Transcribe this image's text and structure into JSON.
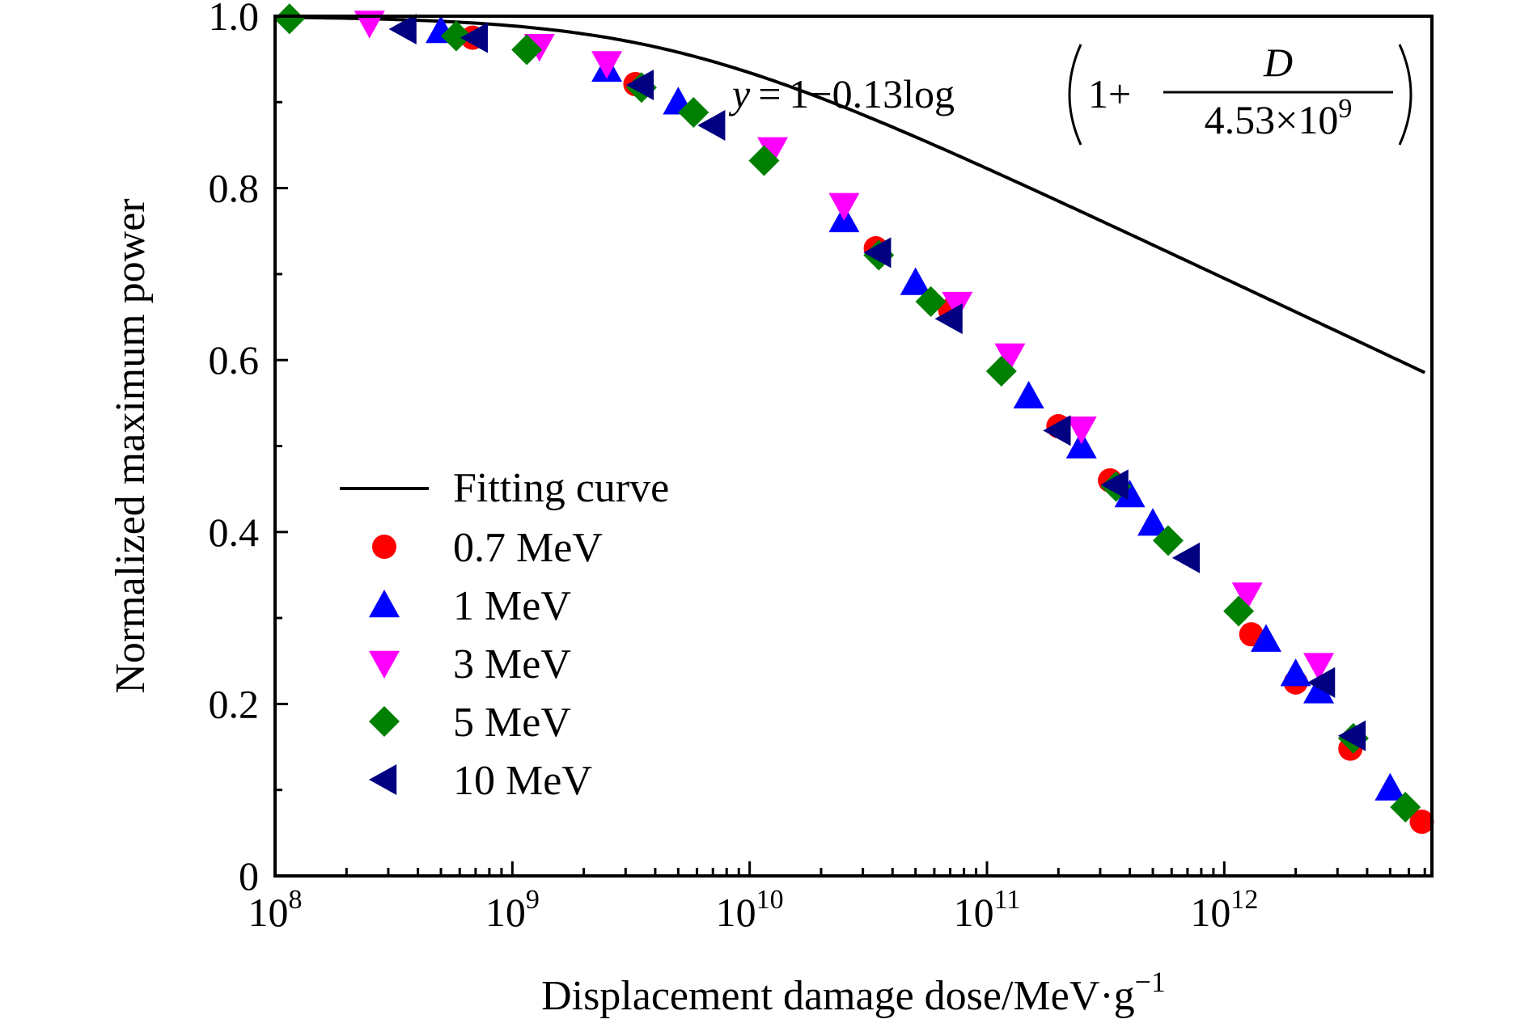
{
  "chart_data": {
    "type": "scatter",
    "xlabel": "Displacement damage dose/MeV·g",
    "xlabel_exponent": "−1",
    "ylabel": "Normalized maximum power",
    "x_scale": "log",
    "xlim": [
      100000000.0,
      7500000000000.0
    ],
    "ylim": [
      0,
      1.0
    ],
    "x_ticks": [
      {
        "base": "10",
        "exp": "8"
      },
      {
        "base": "10",
        "exp": "9"
      },
      {
        "base": "10",
        "exp": "10"
      },
      {
        "base": "10",
        "exp": "11"
      },
      {
        "base": "10",
        "exp": "12"
      }
    ],
    "y_ticks": [
      "0",
      "0.2",
      "0.4",
      "0.6",
      "0.8",
      "1.0"
    ],
    "y_tick_values": [
      0,
      0.2,
      0.4,
      0.6,
      0.8,
      1.0
    ],
    "grid": false,
    "legend_position": "lower-left",
    "equation": {
      "lhs": "y",
      "eq": "=",
      "prefix": "1−0.13log",
      "numerator_prefix": "1+",
      "numerator": "D",
      "denominator": "4.53×10",
      "denominator_exp": "9"
    },
    "fit": {
      "name": "Fitting curve",
      "a": 0.13,
      "D0": 4530000000.0,
      "color": "#000000",
      "x_range": [
        100000000.0,
        7000000000000.0
      ]
    },
    "series": [
      {
        "name": "0.7 MeV",
        "marker": "circle",
        "color": "#ff0000",
        "points": [
          [
            680000000.0,
            0.975
          ],
          [
            3300000000.0,
            0.921
          ],
          [
            34000000000.0,
            0.73
          ],
          [
            70000000000.0,
            0.658
          ],
          [
            200000000000.0,
            0.523
          ],
          [
            330000000000.0,
            0.46
          ],
          [
            1300000000000.0,
            0.281
          ],
          [
            2000000000000.0,
            0.225
          ],
          [
            3400000000000.0,
            0.148
          ],
          [
            6800000000000.0,
            0.063
          ]
        ]
      },
      {
        "name": "1 MeV",
        "marker": "triangle-up",
        "color": "#0000ff",
        "points": [
          [
            500000000.0,
            0.983
          ],
          [
            2500000000.0,
            0.938
          ],
          [
            5000000000.0,
            0.9
          ],
          [
            25000000000.0,
            0.763
          ],
          [
            50000000000.0,
            0.69
          ],
          [
            150000000000.0,
            0.558
          ],
          [
            250000000000.0,
            0.5
          ],
          [
            400000000000.0,
            0.443
          ],
          [
            500000000000.0,
            0.41
          ],
          [
            1500000000000.0,
            0.275
          ],
          [
            2000000000000.0,
            0.235
          ],
          [
            2500000000000.0,
            0.215
          ],
          [
            5000000000000.0,
            0.102
          ]
        ]
      },
      {
        "name": "3 MeV",
        "marker": "triangle-down",
        "color": "#ff00ff",
        "points": [
          [
            250000000.0,
            0.992
          ],
          [
            1300000000.0,
            0.965
          ],
          [
            2500000000.0,
            0.945
          ],
          [
            12500000000.0,
            0.845
          ],
          [
            25000000000.0,
            0.78
          ],
          [
            75000000000.0,
            0.665
          ],
          [
            125000000000.0,
            0.605
          ],
          [
            250000000000.0,
            0.52
          ],
          [
            1250000000000.0,
            0.327
          ],
          [
            2500000000000.0,
            0.245
          ]
        ]
      },
      {
        "name": "5 MeV",
        "marker": "diamond",
        "color": "#008000",
        "points": [
          [
            115000000.0,
            0.997
          ],
          [
            580000000.0,
            0.977
          ],
          [
            1150000000.0,
            0.961
          ],
          [
            3500000000.0,
            0.917
          ],
          [
            5800000000.0,
            0.888
          ],
          [
            11500000000.0,
            0.832
          ],
          [
            35000000000.0,
            0.722
          ],
          [
            58000000000.0,
            0.668
          ],
          [
            115000000000.0,
            0.587
          ],
          [
            350000000000.0,
            0.453
          ],
          [
            580000000000.0,
            0.39
          ],
          [
            1150000000000.0,
            0.308
          ],
          [
            3500000000000.0,
            0.16
          ],
          [
            5800000000000.0,
            0.08
          ]
        ]
      },
      {
        "name": "10 MeV",
        "marker": "triangle-left",
        "color": "#000080",
        "points": [
          [
            350000000.0,
            0.985
          ],
          [
            700000000.0,
            0.975
          ],
          [
            3500000000.0,
            0.92
          ],
          [
            7000000000.0,
            0.873
          ],
          [
            35000000000.0,
            0.725
          ],
          [
            70000000000.0,
            0.648
          ],
          [
            200000000000.0,
            0.518
          ],
          [
            350000000000.0,
            0.455
          ],
          [
            700000000000.0,
            0.37
          ],
          [
            2600000000000.0,
            0.225
          ],
          [
            3500000000000.0,
            0.163
          ]
        ]
      }
    ]
  }
}
